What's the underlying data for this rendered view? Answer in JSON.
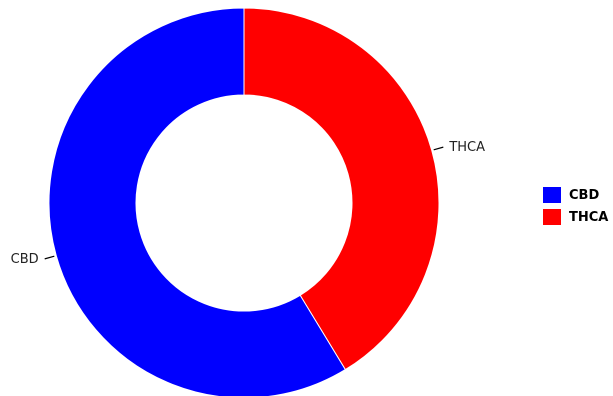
{
  "chart_data": {
    "type": "pie",
    "donut": true,
    "title": "",
    "slices": [
      {
        "name": "THCA",
        "value": 41.3,
        "color": "#ff0000"
      },
      {
        "name": "CBD",
        "value": 58.7,
        "color": "#0000ff"
      }
    ],
    "legend": {
      "placement": "right",
      "entries": [
        {
          "name": "CBD",
          "color": "#0000ff"
        },
        {
          "name": "THCA",
          "color": "#ff0000"
        }
      ]
    }
  }
}
